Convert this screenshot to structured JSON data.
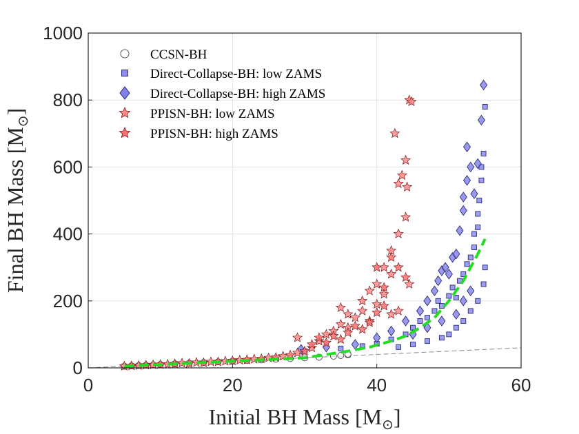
{
  "chart_data": {
    "type": "scatter",
    "xlabel": "Initial BH Mass [M",
    "ylabel": "Final BH Mass [M",
    "xlim": [
      0,
      60
    ],
    "ylim": [
      0,
      1000
    ],
    "xticks": [
      0,
      20,
      40,
      60
    ],
    "yticks": [
      0,
      200,
      400,
      600,
      800,
      1000
    ],
    "grid": true,
    "legend_location": "top-left",
    "colors": {
      "ccsn": "#666666",
      "dc_low": "#8c8cf0",
      "dc_high": "#8080e8",
      "ppisn_low": "#ff8a8a",
      "ppisn_high": "#ff7070",
      "fit_line": "#22dd22",
      "identity_line": "#888888"
    },
    "series": [
      {
        "name": "CCSN-BH",
        "marker": "circle",
        "points": [
          [
            5,
            5
          ],
          [
            6,
            6
          ],
          [
            7,
            7
          ],
          [
            8,
            8
          ],
          [
            9,
            9
          ],
          [
            10,
            10
          ],
          [
            12,
            12
          ],
          [
            14,
            14
          ],
          [
            16,
            16
          ],
          [
            18,
            18
          ],
          [
            20,
            20
          ],
          [
            22,
            22
          ],
          [
            24,
            24
          ],
          [
            26,
            26
          ],
          [
            28,
            28
          ],
          [
            30,
            30
          ],
          [
            32,
            32
          ],
          [
            34,
            35
          ],
          [
            35,
            37
          ],
          [
            36,
            39
          ],
          [
            36,
            41
          ]
        ]
      },
      {
        "name": "Direct-Collapse-BH: low ZAMS",
        "marker": "square",
        "points": [
          [
            30,
            50
          ],
          [
            35,
            58
          ],
          [
            38,
            65
          ],
          [
            40,
            72
          ],
          [
            42,
            85
          ],
          [
            44,
            100
          ],
          [
            45,
            120
          ],
          [
            46,
            140
          ],
          [
            47,
            150
          ],
          [
            48,
            170
          ],
          [
            48.5,
            200
          ],
          [
            49,
            185
          ],
          [
            50,
            215
          ],
          [
            50.5,
            240
          ],
          [
            51,
            210
          ],
          [
            51.5,
            260
          ],
          [
            52,
            280
          ],
          [
            52.5,
            310
          ],
          [
            53,
            330
          ],
          [
            53.5,
            360
          ],
          [
            53.5,
            400
          ],
          [
            54,
            420
          ],
          [
            54,
            460
          ],
          [
            54.2,
            500
          ],
          [
            54.5,
            560
          ],
          [
            54.5,
            600
          ],
          [
            54.8,
            640
          ],
          [
            55,
            780
          ],
          [
            55,
            300
          ],
          [
            54.8,
            250
          ],
          [
            54,
            200
          ],
          [
            53,
            170
          ],
          [
            52,
            140
          ],
          [
            51,
            120
          ],
          [
            50,
            100
          ],
          [
            49,
            90
          ],
          [
            47,
            80
          ],
          [
            45,
            70
          ],
          [
            43,
            62
          ]
        ]
      },
      {
        "name": "Direct-Collapse-BH: high ZAMS",
        "marker": "diamond",
        "points": [
          [
            29.5,
            55
          ],
          [
            33,
            62
          ],
          [
            37,
            70
          ],
          [
            40,
            90
          ],
          [
            42,
            110
          ],
          [
            44,
            140
          ],
          [
            46,
            170
          ],
          [
            47,
            200
          ],
          [
            48,
            230
          ],
          [
            48.5,
            260
          ],
          [
            49,
            290
          ],
          [
            49.5,
            300
          ],
          [
            50,
            280
          ],
          [
            50.5,
            330
          ],
          [
            51,
            340
          ],
          [
            51.5,
            410
          ],
          [
            52,
            470
          ],
          [
            52,
            510
          ],
          [
            52.5,
            560
          ],
          [
            52.5,
            660
          ],
          [
            53,
            600
          ],
          [
            53.5,
            520
          ],
          [
            54,
            610
          ],
          [
            54.5,
            740
          ],
          [
            54.8,
            845
          ],
          [
            53,
            230
          ],
          [
            52,
            200
          ],
          [
            51,
            160
          ],
          [
            49,
            140
          ],
          [
            47,
            120
          ],
          [
            45,
            100
          ]
        ]
      },
      {
        "name": "PPISN-BH: low ZAMS",
        "marker": "star",
        "points": [
          [
            5,
            5
          ],
          [
            7,
            7
          ],
          [
            9,
            9
          ],
          [
            11,
            11
          ],
          [
            13,
            14
          ],
          [
            15,
            16
          ],
          [
            17,
            18
          ],
          [
            19,
            20
          ],
          [
            21,
            23
          ],
          [
            23,
            26
          ],
          [
            25,
            30
          ],
          [
            27,
            35
          ],
          [
            29,
            45
          ],
          [
            29,
            90
          ],
          [
            31,
            60
          ],
          [
            32,
            80
          ],
          [
            33,
            100
          ],
          [
            34,
            110
          ],
          [
            35,
            130
          ],
          [
            35,
            180
          ],
          [
            36,
            120
          ],
          [
            36,
            160
          ],
          [
            37,
            150
          ],
          [
            38,
            170
          ],
          [
            38,
            200
          ],
          [
            39,
            140
          ],
          [
            39,
            230
          ],
          [
            40,
            190
          ],
          [
            40,
            250
          ],
          [
            41,
            220
          ],
          [
            41,
            300
          ],
          [
            42,
            350
          ],
          [
            42,
            280
          ],
          [
            42.5,
            700
          ],
          [
            43,
            550
          ],
          [
            43,
            400
          ],
          [
            43.5,
            575
          ],
          [
            44,
            450
          ],
          [
            44,
            620
          ],
          [
            44.2,
            540
          ],
          [
            44.5,
            800
          ],
          [
            44.8,
            795
          ],
          [
            44.5,
            250
          ],
          [
            43,
            170
          ],
          [
            42,
            160
          ]
        ]
      },
      {
        "name": "PPISN-BH: high ZAMS",
        "marker": "star",
        "points": [
          [
            6,
            6
          ],
          [
            8,
            8
          ],
          [
            10,
            10
          ],
          [
            12,
            12
          ],
          [
            14,
            13
          ],
          [
            16,
            15
          ],
          [
            18,
            18
          ],
          [
            20,
            21
          ],
          [
            22,
            24
          ],
          [
            24,
            27
          ],
          [
            26,
            31
          ],
          [
            28,
            38
          ],
          [
            30,
            50
          ],
          [
            31,
            70
          ],
          [
            32,
            90
          ],
          [
            33,
            75
          ],
          [
            34,
            95
          ],
          [
            35,
            85
          ],
          [
            36,
            105
          ],
          [
            37,
            125
          ],
          [
            38,
            115
          ],
          [
            39,
            135
          ],
          [
            40,
            165
          ],
          [
            40,
            300
          ],
          [
            41,
            185
          ],
          [
            41,
            240
          ],
          [
            42,
            330
          ],
          [
            43,
            300
          ],
          [
            44,
            270
          ]
        ]
      }
    ],
    "fit_line": {
      "style": "dashed",
      "x": [
        5,
        10,
        15,
        20,
        25,
        30,
        33,
        36,
        39,
        42,
        44,
        46,
        48,
        50,
        52,
        53,
        54,
        55
      ],
      "y": [
        5,
        10,
        15,
        20,
        25,
        30,
        40,
        50,
        62,
        80,
        95,
        120,
        150,
        200,
        260,
        300,
        340,
        385
      ]
    },
    "identity_line": {
      "style": "dashed",
      "x": [
        0,
        60
      ],
      "y": [
        0,
        60
      ]
    }
  },
  "labels": {
    "x_title": "Initial BH Mass [M",
    "y_title": "Final BH Mass [M",
    "sun_symbol": "⊙",
    "close_bracket": "]",
    "legend": [
      "CCSN-BH",
      "Direct-Collapse-BH: low ZAMS",
      "Direct-Collapse-BH: high ZAMS",
      "PPISN-BH: low ZAMS",
      "PPISN-BH: high ZAMS"
    ]
  }
}
